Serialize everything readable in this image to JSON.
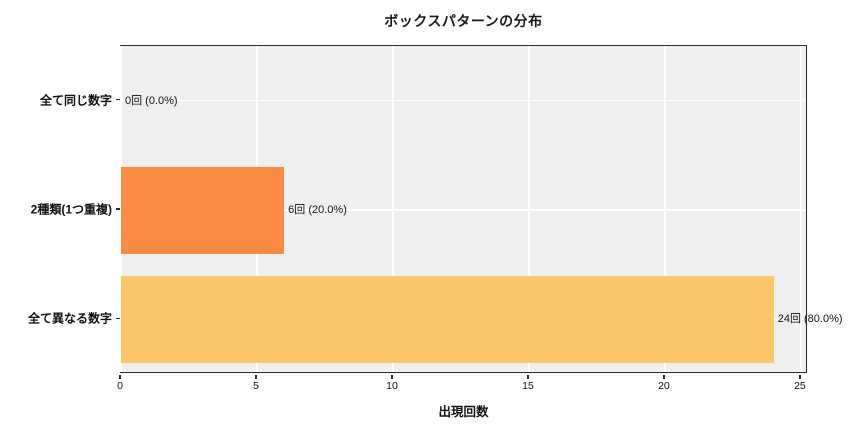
{
  "chart_data": {
    "type": "bar",
    "orientation": "horizontal",
    "title": "ボックスパターンの分布",
    "xlabel": "出現回数",
    "categories": [
      "全て同じ数字",
      "2種類(1つ重複)",
      "全て異なる数字"
    ],
    "values": [
      0,
      6,
      24
    ],
    "bar_labels": [
      "0回 (0.0%)",
      "6回 (20.0%)",
      "24回 (80.0%)"
    ],
    "bar_colors": [
      null,
      "#F98C42",
      "#FCC76B"
    ],
    "xticks": [
      0,
      5,
      10,
      15,
      20,
      25
    ],
    "xlim": [
      0,
      25.26
    ],
    "bar_height_frac": 0.8,
    "grid": true,
    "legend": false,
    "plot_bg": "#EFEFEF",
    "grid_color": "#FFFFFF",
    "text_color": "#111111"
  }
}
